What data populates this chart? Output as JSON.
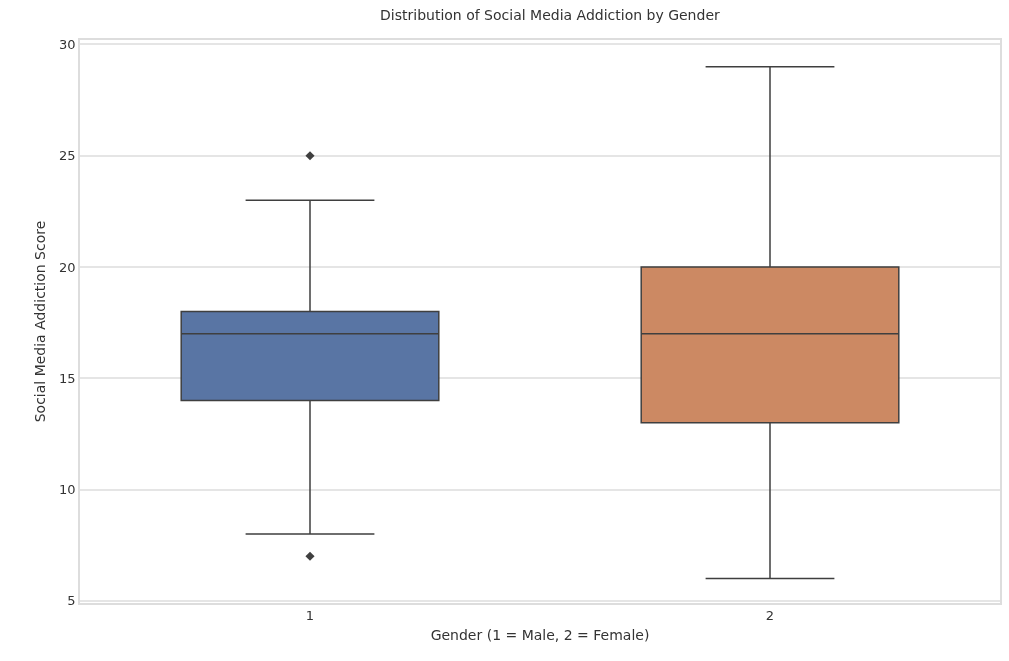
{
  "chart_data": {
    "type": "box",
    "title": "Distribution of Social Media Addiction by Gender",
    "xlabel": "Gender (1 = Male, 2 = Female)",
    "ylabel": "Social Media Addiction Score",
    "categories": [
      "1",
      "2"
    ],
    "colors": [
      "#5975a4",
      "#cc8963"
    ],
    "boxes": [
      {
        "low": 8,
        "q1": 14,
        "median": 17,
        "q3": 18,
        "high": 23,
        "outliers": [
          25,
          7
        ]
      },
      {
        "low": 6,
        "q1": 13,
        "median": 17,
        "q3": 20,
        "high": 29
      }
    ],
    "ylim": [
      4.9,
      30.2
    ],
    "yticks": [
      5,
      10,
      15,
      20,
      25,
      30
    ],
    "grid": "y",
    "marker": "diamond"
  }
}
